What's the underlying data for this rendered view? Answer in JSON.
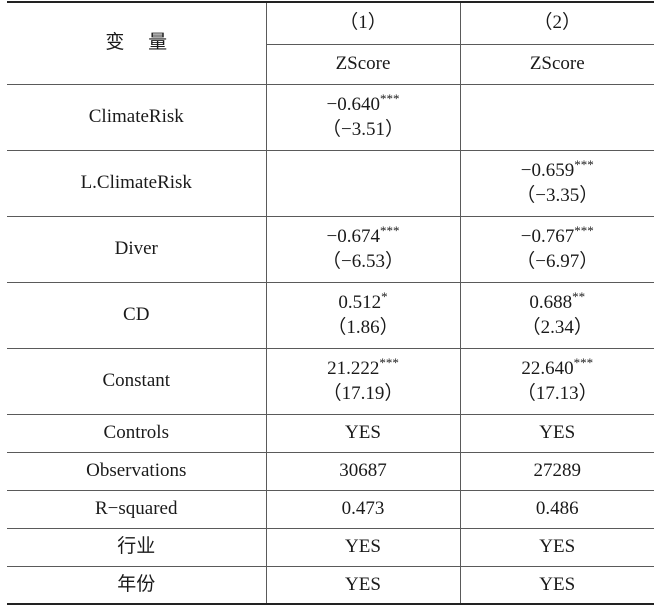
{
  "header": {
    "variable_label": "变 量",
    "col1_num": "（1）",
    "col2_num": "（2）",
    "col1_dep": "ZScore",
    "col2_dep": "ZScore"
  },
  "coef_rows": [
    {
      "name": "ClimateRisk",
      "c1": "−0.640",
      "c1_stars": "***",
      "c1_t": "（−3.51）",
      "c2": "",
      "c2_stars": "",
      "c2_t": ""
    },
    {
      "name": "L.ClimateRisk",
      "c1": "",
      "c1_stars": "",
      "c1_t": "",
      "c2": "−0.659",
      "c2_stars": "***",
      "c2_t": "（−3.35）"
    },
    {
      "name": "Diver",
      "c1": "−0.674",
      "c1_stars": "***",
      "c1_t": "（−6.53）",
      "c2": "−0.767",
      "c2_stars": "***",
      "c2_t": "（−6.97）"
    },
    {
      "name": "CD",
      "c1": "0.512",
      "c1_stars": "*",
      "c1_t": "（1.86）",
      "c2": "0.688",
      "c2_stars": "**",
      "c2_t": "（2.34）"
    },
    {
      "name": "Constant",
      "c1": "21.222",
      "c1_stars": "***",
      "c1_t": "（17.19）",
      "c2": "22.640",
      "c2_stars": "***",
      "c2_t": "（17.13）"
    }
  ],
  "stat_rows": [
    {
      "name": "Controls",
      "c1": "YES",
      "c2": "YES"
    },
    {
      "name": "Observations",
      "c1": "30687",
      "c2": "27289"
    },
    {
      "name": "R−squared",
      "c1": "0.473",
      "c2": "0.486"
    },
    {
      "name": "行业",
      "c1": "YES",
      "c2": "YES"
    },
    {
      "name": "年份",
      "c1": "YES",
      "c2": "YES"
    }
  ]
}
